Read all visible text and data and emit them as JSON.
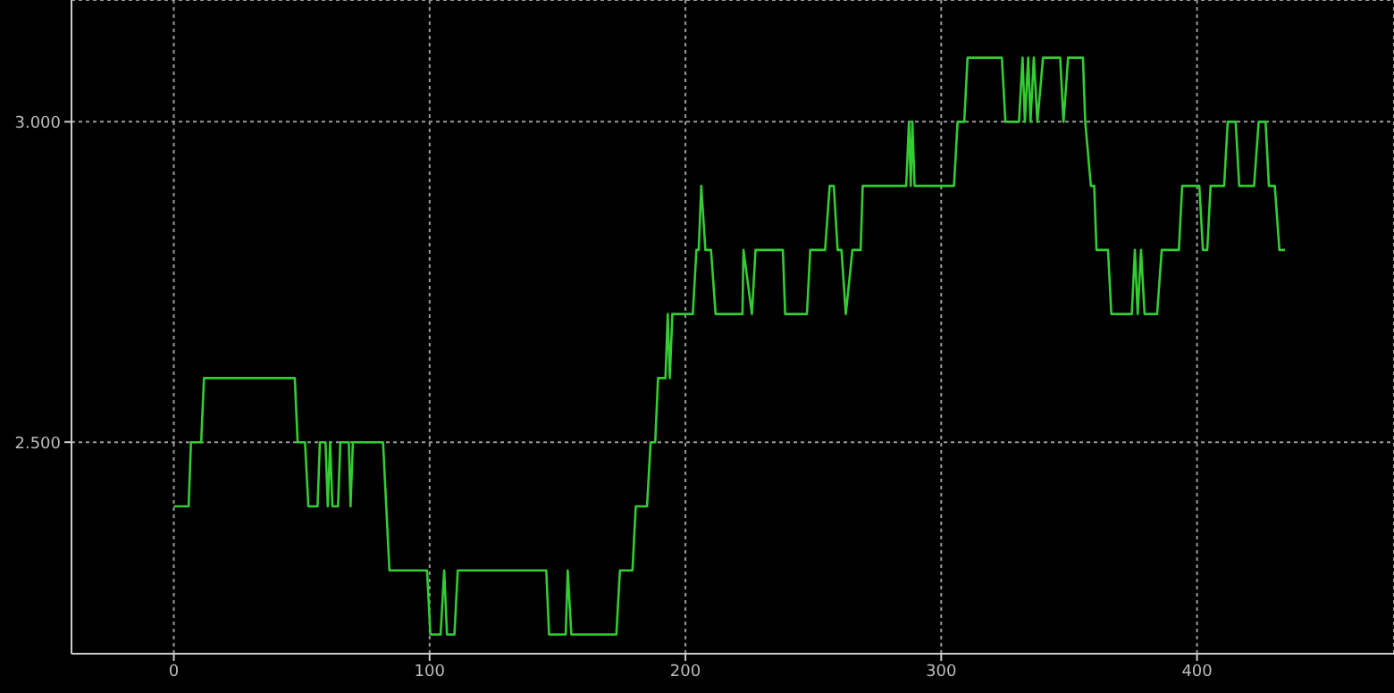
{
  "chart_data": {
    "type": "line",
    "xlim": [
      -40,
      477
    ],
    "ylim": [
      2.17,
      3.19
    ],
    "xticks": [
      0,
      100,
      200,
      300,
      400
    ],
    "yticks": [
      {
        "value": 2.5,
        "label": "2.500"
      },
      {
        "value": 3.0,
        "label": "3.000"
      }
    ],
    "grid": true,
    "marker": "none",
    "line_style": "solid",
    "series": [
      {
        "color": "#33cc33",
        "x": [
          0,
          5.8,
          6.7,
          10.7,
          11.8,
          47.3,
          48.4,
          51.3,
          52.6,
          56.2,
          57.1,
          59.3,
          60.2,
          61.1,
          62,
          64.2,
          65.1,
          68.4,
          69.1,
          70,
          81.8,
          84.3,
          99,
          100.3,
          104.3,
          105.7,
          106.8,
          109.7,
          111,
          145.6,
          146.7,
          153.2,
          154,
          155.4,
          173,
          174.4,
          179.3,
          180.6,
          185,
          186.4,
          188.2,
          189.3,
          192.2,
          193.1,
          193.9,
          194.9,
          202.9,
          204.3,
          205.2,
          206.2,
          207.8,
          210,
          211.8,
          222.3,
          222.7,
          226,
          227.4,
          238.1,
          239,
          247.5,
          248.8,
          254.6,
          256.4,
          258,
          259.5,
          261,
          262.7,
          265.3,
          268.5,
          269.3,
          286.3,
          287.4,
          288.1,
          288.7,
          289.6,
          305,
          306.4,
          309,
          310.3,
          323.7,
          325.1,
          330.4,
          331.8,
          332.7,
          334,
          334.9,
          336.2,
          337.6,
          339.8,
          346.5,
          347.8,
          349.6,
          355.4,
          356.3,
          358.5,
          359.8,
          360.7,
          365.2,
          366.5,
          374.5,
          375.7,
          376.8,
          378.1,
          379.5,
          384.4,
          386.2,
          392.9,
          394.2,
          400.9,
          402.3,
          404,
          405.3,
          410.6,
          412,
          415.1,
          416.5,
          422.3,
          424.1,
          426.8,
          428.1,
          430.4,
          432.2,
          434.4
        ],
        "values": [
          2.4,
          2.4,
          2.5,
          2.5,
          2.6,
          2.6,
          2.5,
          2.5,
          2.4,
          2.4,
          2.5,
          2.5,
          2.4,
          2.5,
          2.4,
          2.4,
          2.5,
          2.5,
          2.4,
          2.5,
          2.5,
          2.3,
          2.3,
          2.2,
          2.2,
          2.3,
          2.2,
          2.2,
          2.3,
          2.3,
          2.2,
          2.2,
          2.3,
          2.2,
          2.2,
          2.3,
          2.3,
          2.4,
          2.4,
          2.5,
          2.5,
          2.6,
          2.6,
          2.7,
          2.6,
          2.7,
          2.7,
          2.8,
          2.8,
          2.9,
          2.8,
          2.8,
          2.7,
          2.7,
          2.8,
          2.7,
          2.8,
          2.8,
          2.7,
          2.7,
          2.8,
          2.8,
          2.9,
          2.9,
          2.8,
          2.8,
          2.7,
          2.8,
          2.8,
          2.9,
          2.9,
          3.0,
          2.9,
          3.0,
          2.9,
          2.9,
          3.0,
          3.0,
          3.1,
          3.1,
          3.0,
          3.0,
          3.1,
          3.0,
          3.1,
          3.0,
          3.1,
          3.0,
          3.1,
          3.1,
          3.0,
          3.1,
          3.1,
          3.0,
          2.9,
          2.9,
          2.8,
          2.8,
          2.7,
          2.7,
          2.8,
          2.7,
          2.8,
          2.7,
          2.7,
          2.8,
          2.8,
          2.9,
          2.9,
          2.8,
          2.8,
          2.9,
          2.9,
          3.0,
          3.0,
          2.9,
          2.9,
          3.0,
          3.0,
          2.9,
          2.9,
          2.8,
          2.8
        ]
      }
    ]
  }
}
